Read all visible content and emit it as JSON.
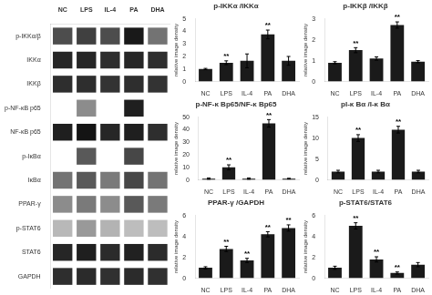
{
  "chart_data": [
    {
      "type": "heatmap",
      "x": [
        "NC",
        "LPS",
        "IL-4",
        "PA",
        "DHA"
      ],
      "y": [
        "p-IKKα/β",
        "IKKα",
        "IKKβ",
        "p-NF-κB p65",
        "NF-κB p65",
        "p-IκBα",
        "IκBα",
        "PPAR-γ",
        "p-STAT6",
        "STAT6",
        "GAPDH"
      ],
      "values": [
        [
          0.7,
          0.75,
          0.7,
          0.9,
          0.55
        ],
        [
          0.85,
          0.85,
          0.82,
          0.85,
          0.82
        ],
        [
          0.82,
          0.82,
          0.8,
          0.82,
          0.8
        ],
        [
          0.0,
          0.45,
          0.0,
          0.88,
          0.0
        ],
        [
          0.88,
          0.92,
          0.85,
          0.88,
          0.82
        ],
        [
          0.0,
          0.65,
          0.0,
          0.72,
          0.0
        ],
        [
          0.55,
          0.65,
          0.52,
          0.72,
          0.55
        ],
        [
          0.45,
          0.52,
          0.45,
          0.65,
          0.52
        ],
        [
          0.28,
          0.4,
          0.3,
          0.26,
          0.26
        ],
        [
          0.85,
          0.88,
          0.83,
          0.87,
          0.83
        ],
        [
          0.82,
          0.83,
          0.81,
          0.83,
          0.81
        ]
      ],
      "grid": false
    },
    {
      "type": "bar",
      "title": "p-IKKα /IKKα",
      "ylabel": "relative image density",
      "categories": [
        "NC",
        "LPS",
        "IL-4",
        "PA",
        "DHA"
      ],
      "values": [
        1.0,
        1.5,
        1.65,
        3.75,
        1.65
      ],
      "errors": [
        0.05,
        0.15,
        0.55,
        0.35,
        0.35
      ],
      "annotations": [
        null,
        "**",
        null,
        "**",
        null
      ],
      "color": "#1a1a1a",
      "ylim": [
        0,
        5
      ],
      "yticks": [
        0,
        1,
        2,
        3,
        4,
        5
      ],
      "grid": false
    },
    {
      "type": "bar",
      "title": "p-IKKβ /IKKβ",
      "ylabel": "relative image density",
      "categories": [
        "NC",
        "LPS",
        "IL-4",
        "PA",
        "DHA"
      ],
      "values": [
        0.9,
        1.5,
        1.1,
        2.7,
        0.95
      ],
      "errors": [
        0.05,
        0.12,
        0.08,
        0.15,
        0.05
      ],
      "annotations": [
        null,
        "**",
        null,
        "**",
        null
      ],
      "color": "#1a1a1a",
      "ylim": [
        0,
        3
      ],
      "yticks": [
        0,
        1,
        2,
        3
      ],
      "grid": false
    },
    {
      "type": "bar",
      "title": "p-NF-κ Bp65/NF-κ Bp65",
      "ylabel": "relative image density",
      "categories": [
        "NC",
        "LPS",
        "IL-4",
        "PA",
        "DHA"
      ],
      "values": [
        1.0,
        10.0,
        1.0,
        45.0,
        1.0
      ],
      "errors": [
        0.5,
        2.0,
        0.5,
        3.0,
        0.3
      ],
      "annotations": [
        null,
        "**",
        null,
        "**",
        null
      ],
      "color": "#1a1a1a",
      "ylim": [
        0,
        50
      ],
      "yticks": [
        0,
        10,
        20,
        30,
        40,
        50
      ],
      "grid": false
    },
    {
      "type": "bar",
      "title": "pI-κ Bα /I-κ Bα",
      "ylabel": "relative image density",
      "categories": [
        "NC",
        "LPS",
        "IL-4",
        "PA",
        "DHA"
      ],
      "values": [
        2.0,
        10.0,
        2.0,
        12.0,
        2.0
      ],
      "errors": [
        0.3,
        0.8,
        0.3,
        0.8,
        0.3
      ],
      "annotations": [
        null,
        "**",
        null,
        "**",
        null
      ],
      "color": "#1a1a1a",
      "ylim": [
        0,
        15
      ],
      "yticks": [
        0,
        5,
        10,
        15
      ],
      "grid": false
    },
    {
      "type": "bar",
      "title": "PPAR-γ /GAPDH",
      "ylabel": "relative image density",
      "categories": [
        "NC",
        "LPS",
        "IL-4",
        "PA",
        "DHA"
      ],
      "values": [
        1.0,
        2.8,
        1.7,
        4.2,
        4.8
      ],
      "errors": [
        0.1,
        0.25,
        0.2,
        0.25,
        0.3
      ],
      "annotations": [
        null,
        "**",
        "**",
        "**",
        "**"
      ],
      "color": "#1a1a1a",
      "ylim": [
        0,
        6
      ],
      "yticks": [
        0,
        2,
        4,
        6
      ],
      "grid": false
    },
    {
      "type": "bar",
      "title": "p-STAT6/STAT6",
      "ylabel": "relative image density",
      "categories": [
        "NC",
        "LPS",
        "IL-4",
        "PA",
        "DHA"
      ],
      "values": [
        1.0,
        5.0,
        1.8,
        0.5,
        1.3
      ],
      "errors": [
        0.15,
        0.3,
        0.25,
        0.1,
        0.2
      ],
      "annotations": [
        null,
        "**",
        "**",
        "**",
        null
      ],
      "color": "#1a1a1a",
      "ylim": [
        0,
        6
      ],
      "yticks": [
        0,
        2,
        4,
        6
      ],
      "grid": false
    }
  ]
}
